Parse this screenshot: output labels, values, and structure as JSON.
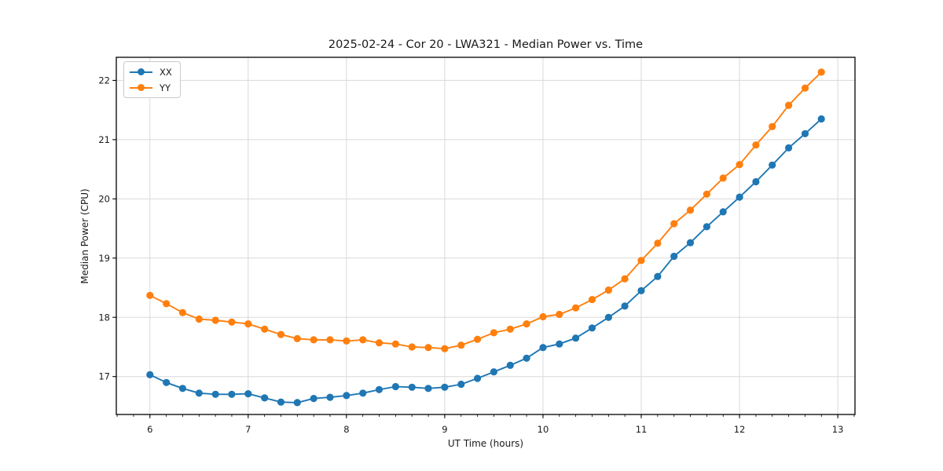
{
  "chart_data": {
    "type": "line",
    "title": "2025-02-24 - Cor 20 - LWA321 - Median Power vs. Time",
    "xlabel": "UT Time (hours)",
    "ylabel": "Median Power (CPU)",
    "xlim": [
      5.658,
      13.175
    ],
    "ylim": [
      16.36,
      22.39
    ],
    "xticks": [
      6,
      7,
      8,
      9,
      10,
      11,
      12,
      13
    ],
    "yticks": [
      17,
      18,
      19,
      20,
      21,
      22
    ],
    "x_minor_step": 0.166667,
    "grid": true,
    "legend_position": "upper-left",
    "marker": "circle",
    "x": [
      6.0,
      6.167,
      6.333,
      6.5,
      6.667,
      6.833,
      7.0,
      7.167,
      7.333,
      7.5,
      7.667,
      7.833,
      8.0,
      8.167,
      8.333,
      8.5,
      8.667,
      8.833,
      9.0,
      9.167,
      9.333,
      9.5,
      9.667,
      9.833,
      10.0,
      10.167,
      10.333,
      10.5,
      10.667,
      10.833,
      11.0,
      11.167,
      11.333,
      11.5,
      11.667,
      11.833,
      12.0,
      12.167,
      12.333,
      12.5,
      12.667,
      12.833
    ],
    "series": [
      {
        "name": "XX",
        "color": "#1f77b4",
        "values": [
          17.03,
          16.9,
          16.8,
          16.72,
          16.7,
          16.7,
          16.71,
          16.64,
          16.57,
          16.56,
          16.63,
          16.65,
          16.68,
          16.72,
          16.78,
          16.83,
          16.82,
          16.8,
          16.82,
          16.87,
          16.97,
          17.08,
          17.19,
          17.31,
          17.49,
          17.55,
          17.65,
          17.82,
          18.0,
          18.19,
          18.45,
          18.69,
          19.03,
          19.26,
          19.53,
          19.78,
          20.03,
          20.29,
          20.57,
          20.86,
          21.1,
          21.35
        ]
      },
      {
        "name": "YY",
        "color": "#ff7f0e",
        "values": [
          18.37,
          18.23,
          18.08,
          17.97,
          17.95,
          17.92,
          17.89,
          17.8,
          17.71,
          17.64,
          17.62,
          17.62,
          17.6,
          17.62,
          17.57,
          17.55,
          17.5,
          17.49,
          17.47,
          17.53,
          17.63,
          17.74,
          17.8,
          17.89,
          18.01,
          18.05,
          18.16,
          18.3,
          18.46,
          18.65,
          18.96,
          19.25,
          19.58,
          19.81,
          20.08,
          20.35,
          20.58,
          20.91,
          21.22,
          21.58,
          21.87,
          22.14
        ]
      }
    ],
    "style_colors": {
      "grid": "#d9d9d9",
      "spine": "#000000",
      "text": "#1a1a1a"
    }
  }
}
